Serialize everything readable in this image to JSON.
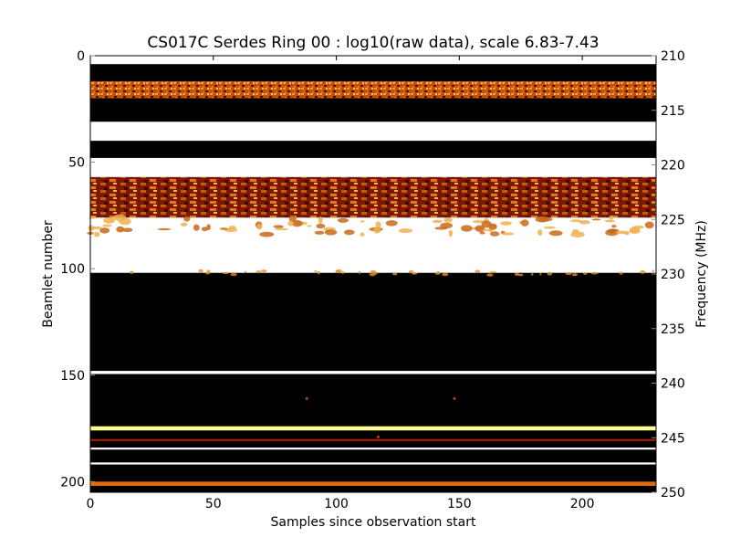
{
  "chart_data": {
    "type": "heatmap",
    "title": "CS017C Serdes Ring 00 : log10(raw data), scale 6.83-7.43",
    "xlabel": "Samples since observation start",
    "ylabel": "Beamlet number",
    "y2label": "Frequency (MHz)",
    "colormap": "afmhot",
    "scale_min": 6.83,
    "scale_max": 7.43,
    "xlim": [
      0,
      230
    ],
    "ylim": [
      205,
      0
    ],
    "y2lim": [
      250,
      210
    ],
    "xticks": [
      0,
      50,
      100,
      150,
      200
    ],
    "yticks": [
      0,
      50,
      100,
      150,
      200
    ],
    "y2ticks": [
      210,
      215,
      220,
      225,
      230,
      235,
      240,
      245,
      250
    ],
    "bands": [
      {
        "from": 0,
        "to": 4,
        "level": "white"
      },
      {
        "from": 4,
        "to": 12,
        "level": "black"
      },
      {
        "from": 12,
        "to": 20,
        "level": "orange-mottled"
      },
      {
        "from": 20,
        "to": 22,
        "level": "black"
      },
      {
        "from": 22,
        "to": 31,
        "level": "black"
      },
      {
        "from": 31,
        "to": 40,
        "level": "white"
      },
      {
        "from": 40,
        "to": 48,
        "level": "black"
      },
      {
        "from": 48,
        "to": 57,
        "level": "white"
      },
      {
        "from": 57,
        "to": 66,
        "level": "orange-dark"
      },
      {
        "from": 66,
        "to": 76,
        "level": "orange-dark"
      },
      {
        "from": 76,
        "to": 102,
        "level": "white"
      },
      {
        "from": 102,
        "to": 148,
        "level": "black"
      },
      {
        "from": 148,
        "to": 149.5,
        "level": "white"
      },
      {
        "from": 149.5,
        "to": 174,
        "level": "black"
      },
      {
        "from": 174,
        "to": 176,
        "level": "yellow"
      },
      {
        "from": 176,
        "to": 180,
        "level": "black"
      },
      {
        "from": 180,
        "to": 181,
        "level": "red"
      },
      {
        "from": 181,
        "to": 184,
        "level": "black"
      },
      {
        "from": 184,
        "to": 185,
        "level": "white"
      },
      {
        "from": 185,
        "to": 191,
        "level": "black"
      },
      {
        "from": 191,
        "to": 192,
        "level": "white"
      },
      {
        "from": 192,
        "to": 200,
        "level": "black"
      },
      {
        "from": 200,
        "to": 202,
        "level": "orange"
      },
      {
        "from": 202,
        "to": 205,
        "level": "black"
      }
    ]
  },
  "colors": {
    "background": "#ffffff",
    "black": "#000000",
    "white": "#ffffff",
    "orange": "#e0781a",
    "dark_red": "#6a1000",
    "yellow": "#ffff90"
  }
}
